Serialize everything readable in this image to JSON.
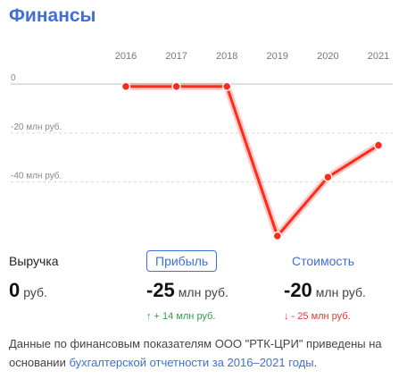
{
  "header": {
    "title": "Финансы"
  },
  "chart_data": {
    "type": "line",
    "x": [
      "2016",
      "2017",
      "2018",
      "2019",
      "2020",
      "2021"
    ],
    "series": [
      {
        "values": [
          -1,
          -1,
          -1,
          -62,
          -38,
          -25
        ]
      }
    ],
    "y_ticks": [
      {
        "value": 0,
        "label": "0"
      },
      {
        "value": -20,
        "label": "-20 млн руб."
      },
      {
        "value": -40,
        "label": "-40 млн руб."
      }
    ],
    "ylim": [
      -62,
      0
    ],
    "grid": true,
    "line_color": "#ff2a1a"
  },
  "metrics": {
    "revenue": {
      "label": "Выручка",
      "value": "0",
      "unit": "руб."
    },
    "profit": {
      "label": "Прибыль",
      "value": "-25",
      "unit": "млн руб.",
      "delta": "↑ + 14 млн руб."
    },
    "cost": {
      "label": "Стоимость",
      "value": "-20",
      "unit": "млн руб.",
      "delta": "↓ - 25 млн руб."
    }
  },
  "note": {
    "text": "Данные по финансовым показателям ООО \"РТК-ЦРИ\" приведены на основании ",
    "link": "бухгалтерской отчетности за 2016–2021 годы",
    "end": "."
  },
  "colors": {
    "accent": "#3f6fd8",
    "line": "#ff2a1a",
    "up": "#2e9e44",
    "down": "#e53935"
  }
}
